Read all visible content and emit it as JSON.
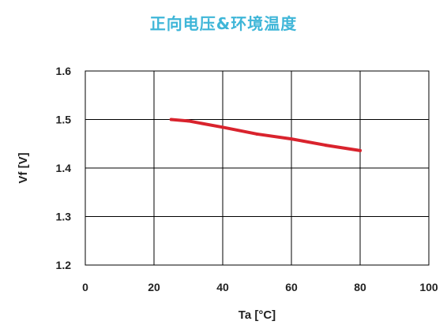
{
  "colors": {
    "title": "#3fb6d8",
    "series": "#d9232d",
    "grid": "#000000"
  },
  "chart_data": {
    "type": "line",
    "title": "正向电压&环境温度",
    "xlabel": "Ta [°C]",
    "ylabel": "Vf [V]",
    "xlim": [
      0,
      100
    ],
    "ylim": [
      1.2,
      1.6
    ],
    "xticks": [
      0,
      20,
      40,
      60,
      80,
      100
    ],
    "yticks": [
      1.2,
      1.3,
      1.4,
      1.5,
      1.6
    ],
    "xtick_labels": [
      "0",
      "20",
      "40",
      "60",
      "80",
      "100"
    ],
    "ytick_labels": [
      "1.2",
      "1.3",
      "1.4",
      "1.5",
      "1.6"
    ],
    "grid": true,
    "series": [
      {
        "x": [
          25,
          30,
          40,
          50,
          60,
          70,
          80
        ],
        "y": [
          1.5,
          1.497,
          1.484,
          1.47,
          1.46,
          1.447,
          1.436
        ]
      }
    ]
  }
}
